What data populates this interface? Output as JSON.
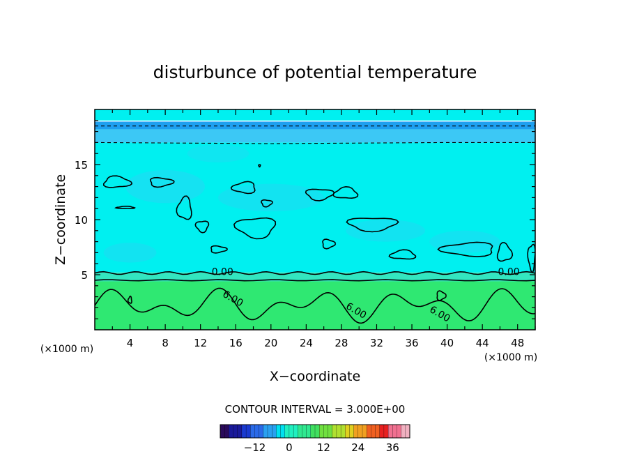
{
  "chart_data": {
    "type": "heatmap",
    "title": "disturbunce of potential temperature",
    "xlabel": "X−coordinate",
    "ylabel": "Z−coordinate",
    "x_unit": "(×1000 m)",
    "x_unit_right": "(×1000 m)",
    "xlim": [
      0,
      50
    ],
    "ylim": [
      0,
      20
    ],
    "xticks": [
      4,
      8,
      12,
      16,
      20,
      24,
      28,
      32,
      36,
      40,
      44,
      48
    ],
    "yticks": [
      5,
      10,
      15
    ],
    "contour_interval_label": "CONTOUR INTERVAL = 3.000E+00",
    "contour_labels": [
      {
        "text": "0.00",
        "x": 14.5,
        "z": 5.3
      },
      {
        "text": "0.00",
        "x": 47.0,
        "z": 5.3
      },
      {
        "text": "6.00",
        "x": 15.5,
        "z": 2.9
      },
      {
        "text": "6.00",
        "x": 29.5,
        "z": 1.8
      },
      {
        "text": "6.00",
        "x": 39.0,
        "z": 1.5
      }
    ],
    "field": {
      "layers": [
        {
          "z": [
            19.0,
            20.0
          ],
          "value": 1,
          "color": "#00f0f0"
        },
        {
          "z": [
            18.2,
            18.9
          ],
          "value": -4,
          "color": "#1ea0f0"
        },
        {
          "z": [
            17.0,
            18.2
          ],
          "value": -2,
          "color": "#3cc8f5"
        },
        {
          "z": [
            5.2,
            17.0
          ],
          "value": 1,
          "color": "#00f0f0"
        },
        {
          "z": [
            4.4,
            5.2
          ],
          "value": 3,
          "color": "#33e6c0"
        },
        {
          "z": [
            0,
            4.4
          ],
          "value": 7,
          "color": "#2fe872"
        }
      ]
    },
    "colorbar": {
      "ticks": [
        -12,
        0,
        12,
        24,
        36
      ],
      "range": [
        -24,
        42
      ],
      "colors": [
        "#2a0a5a",
        "#1a1a9a",
        "#1a3ad0",
        "#2a6ae8",
        "#2aa0f0",
        "#00e0f0",
        "#20f0c0",
        "#30e890",
        "#40e060",
        "#70e040",
        "#b0e030",
        "#e0d020",
        "#f0a020",
        "#f06020",
        "#e82020",
        "#f07090",
        "#f0b0c0"
      ]
    }
  }
}
